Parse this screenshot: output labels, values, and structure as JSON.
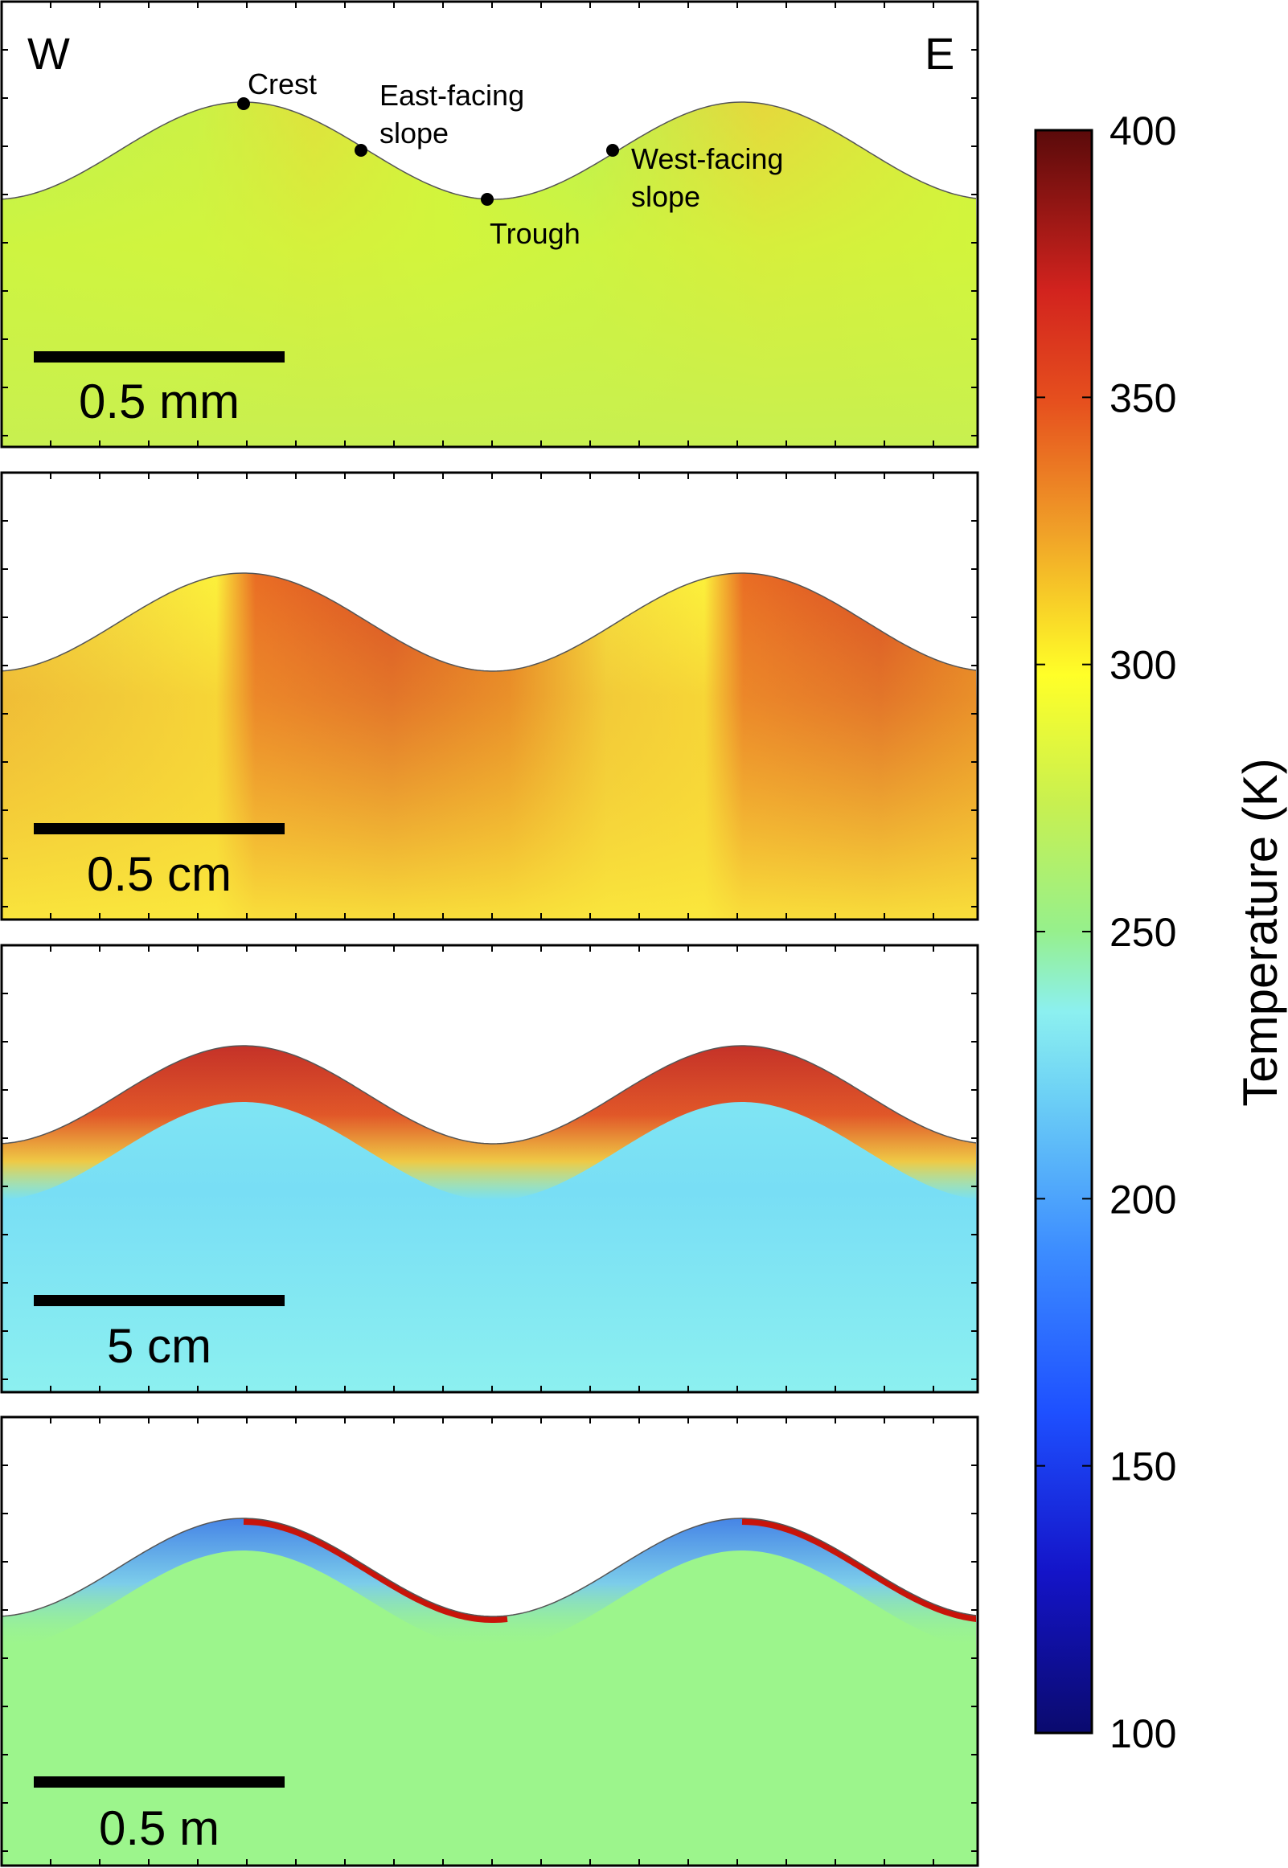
{
  "direction_labels": {
    "west": "W",
    "east": "E"
  },
  "point_labels": {
    "crest": "Crest",
    "east_facing_slope": [
      "East-facing",
      "slope"
    ],
    "trough": "Trough",
    "west_facing_slope": [
      "West-facing",
      "slope"
    ]
  },
  "panels": [
    {
      "scale_bar_label": "0.5 mm"
    },
    {
      "scale_bar_label": "0.5 cm"
    },
    {
      "scale_bar_label": "5 cm"
    },
    {
      "scale_bar_label": "0.5 m"
    }
  ],
  "colorbar": {
    "title": "Temperature (K)",
    "min": 100,
    "max": 400,
    "ticks": [
      "400",
      "350",
      "300",
      "250",
      "200",
      "150",
      "100"
    ],
    "colors": [
      "#0a0a6e",
      "#1e1ee6",
      "#3c8cff",
      "#8cf0f0",
      "#9cf58c",
      "#d2f53c",
      "#ffff28",
      "#f0a028",
      "#dc2d1e",
      "#5a0a0a"
    ]
  },
  "panel_colors": {
    "panel1": {
      "base": "#d2f53c",
      "west": "#b4f05a",
      "east_slope": "#f0c83c"
    },
    "panel2": {
      "base": "#f5d23c",
      "west": "#ffff3c",
      "east_slope": "#d2281e",
      "trough": "#e1641e"
    },
    "panel3": {
      "base": "#8cf0f0",
      "cool": "#6ed2f5",
      "hot": "#d22d1e",
      "warm": "#f0a028"
    },
    "panel4": {
      "base": "#9cf58c",
      "cold": "#2864f0",
      "hot": "#c8140a",
      "cool_band": "#8cf0f0"
    }
  }
}
